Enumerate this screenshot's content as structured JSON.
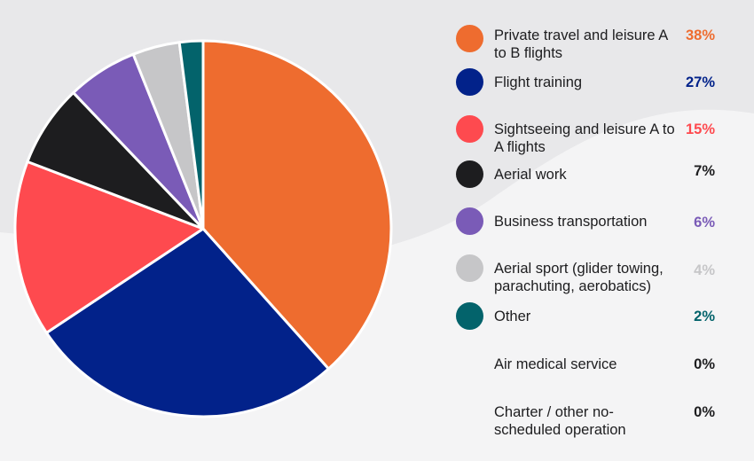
{
  "chart_data": {
    "type": "pie",
    "title": "",
    "slices": [
      {
        "label": "Private travel and leisure A to B flights",
        "value": 38,
        "value_label": "38%",
        "color": "#ee6c2f"
      },
      {
        "label": "Flight training",
        "value": 27,
        "value_label": "27%",
        "color": "#02228a"
      },
      {
        "label": "Sightseeing and leisure A to A flights",
        "value": 15,
        "value_label": "15%",
        "color": "#fe4a4f"
      },
      {
        "label": "Aerial work",
        "value": 7,
        "value_label": "7%",
        "color": "#1d1d1f"
      },
      {
        "label": "Business transportation",
        "value": 6,
        "value_label": "6%",
        "color": "#7a5bb7"
      },
      {
        "label": "Aerial sport (glider towing, parachuting, aerobatics)",
        "value": 4,
        "value_label": "4%",
        "color": "#c6c6c8"
      },
      {
        "label": "Other",
        "value": 2,
        "value_label": "2%",
        "color": "#03636b"
      },
      {
        "label": "Air medical service",
        "value": 0,
        "value_label": "0%",
        "color": ""
      },
      {
        "label": "Charter / other no-scheduled operation",
        "value": 0,
        "value_label": "0%",
        "color": ""
      }
    ],
    "legend_position": "right",
    "text_color": "#1d1d1f",
    "background_color": "#f4f4f5",
    "background_wave_color": "#e8e8ea"
  }
}
